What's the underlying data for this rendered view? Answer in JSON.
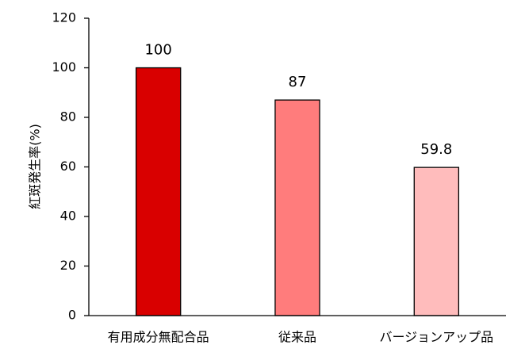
{
  "chart_data": {
    "type": "bar",
    "y_label": "紅斑発生率(%)",
    "categories": [
      "有用成分無配合品",
      "従来品",
      "バージョンアップ品"
    ],
    "values": [
      100,
      87,
      59.8
    ],
    "colors": [
      "#d90000",
      "#ff7c7c",
      "#ffbcbc"
    ],
    "ylim": [
      0,
      120
    ],
    "yticks": [
      0,
      20,
      40,
      60,
      80,
      100,
      120
    ],
    "grid": false
  }
}
